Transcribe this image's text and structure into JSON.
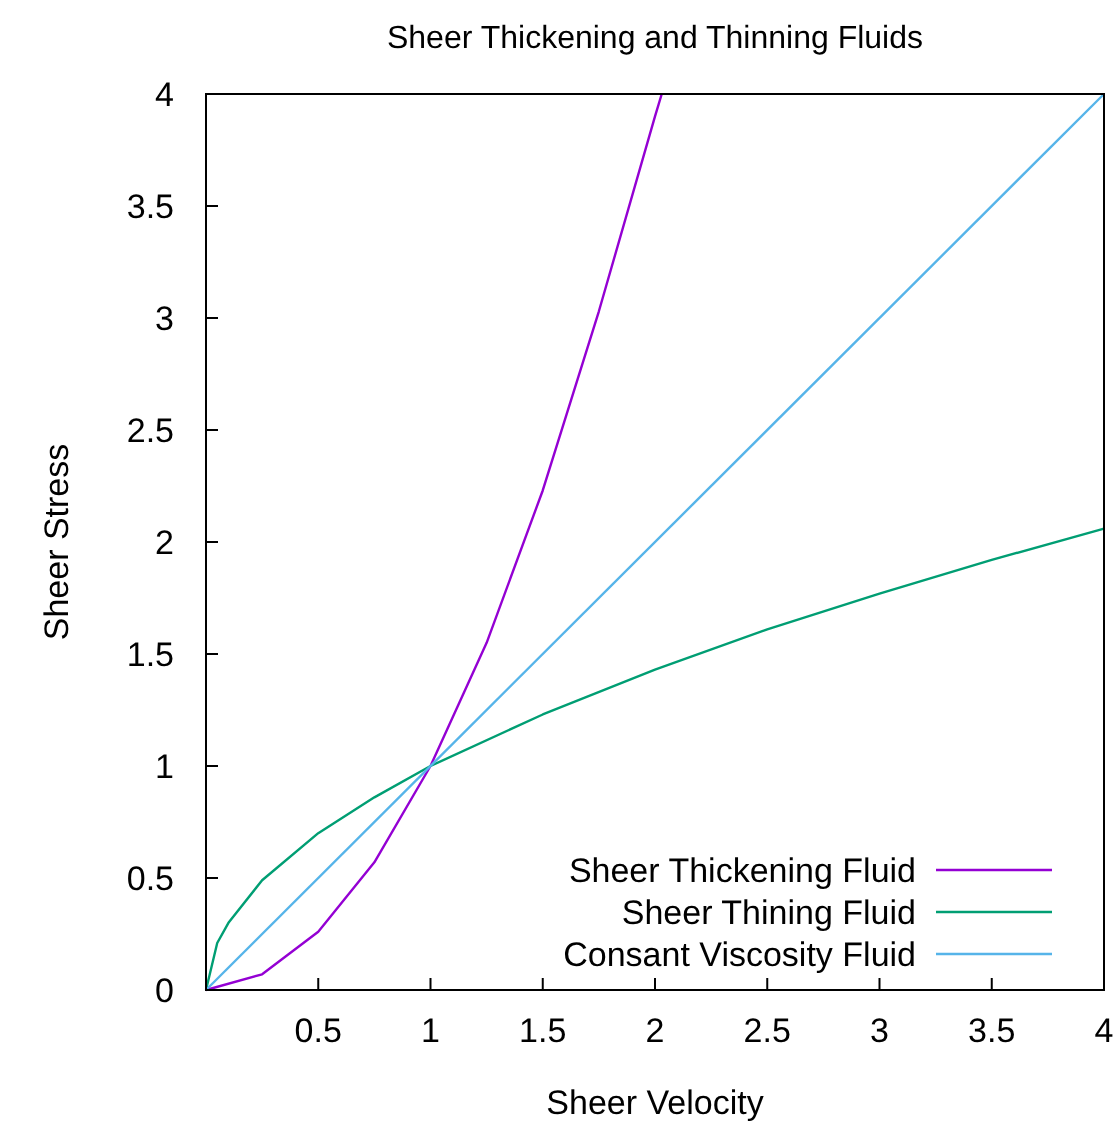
{
  "chart_data": {
    "type": "line",
    "title": "Sheer Thickening and Thinning Fluids",
    "xlabel": "Sheer Velocity",
    "ylabel": "Sheer Stress",
    "xlim": [
      0,
      4
    ],
    "ylim": [
      0,
      4
    ],
    "xticks": [
      0.5,
      1,
      1.5,
      2,
      2.5,
      3,
      3.5,
      4
    ],
    "yticks": [
      0,
      0.5,
      1,
      1.5,
      2,
      2.5,
      3,
      3.5,
      4
    ],
    "grid": false,
    "legend": "bottom right",
    "marker": "none",
    "line_style": "solid",
    "series": [
      {
        "name": "Sheer Thickening Fluid",
        "color": "#9400d3",
        "x": [
          0,
          0.25,
          0.5,
          0.75,
          1,
          1.25,
          1.5,
          1.75,
          2,
          2.03
        ],
        "values": [
          0,
          0.07,
          0.26,
          0.57,
          1,
          1.55,
          2.23,
          3.03,
          3.9,
          4
        ]
      },
      {
        "name": "Sheer Thining Fluid",
        "color": "#009e73",
        "x": [
          0,
          0.05,
          0.1,
          0.25,
          0.5,
          0.75,
          1,
          1.5,
          2,
          2.5,
          3,
          3.5,
          4
        ],
        "values": [
          0,
          0.21,
          0.3,
          0.49,
          0.7,
          0.86,
          1,
          1.23,
          1.43,
          1.61,
          1.77,
          1.92,
          2.06
        ]
      },
      {
        "name": "Consant Viscosity Fluid",
        "color": "#56b4e9",
        "x": [
          0,
          4
        ],
        "values": [
          0,
          4
        ]
      }
    ]
  }
}
